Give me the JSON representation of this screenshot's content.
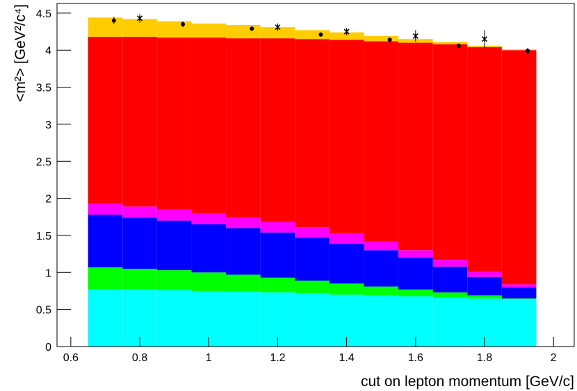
{
  "chart_data": {
    "type": "stacked_histogram",
    "xlabel": "cut on lepton momentum [GeV/c]",
    "ylabel": "<m²> [GeV²/c⁴]",
    "xlim": [
      0.56,
      2.06
    ],
    "ylim": [
      0,
      4.63
    ],
    "xticks": [
      0.6,
      0.8,
      1,
      1.2,
      1.4,
      1.6,
      1.8,
      2
    ],
    "yticks": [
      0,
      0.5,
      1,
      1.5,
      2,
      2.5,
      3,
      3.5,
      4,
      4.5
    ],
    "bins": [
      0.65,
      0.75,
      0.85,
      0.95,
      1.05,
      1.15,
      1.25,
      1.35,
      1.45,
      1.55,
      1.65,
      1.75,
      1.85,
      1.95
    ],
    "series": [
      {
        "color": "#00ffff",
        "values": [
          0.77,
          0.77,
          0.76,
          0.75,
          0.74,
          0.73,
          0.72,
          0.7,
          0.69,
          0.68,
          0.66,
          0.65,
          0.64
        ]
      },
      {
        "color": "#00ff00",
        "values": [
          0.3,
          0.28,
          0.27,
          0.25,
          0.23,
          0.2,
          0.17,
          0.15,
          0.12,
          0.09,
          0.07,
          0.04,
          0.01
        ]
      },
      {
        "color": "#0000ff",
        "values": [
          0.71,
          0.69,
          0.67,
          0.65,
          0.63,
          0.61,
          0.58,
          0.54,
          0.49,
          0.43,
          0.35,
          0.25,
          0.15
        ]
      },
      {
        "color": "#ff00ff",
        "values": [
          0.15,
          0.15,
          0.15,
          0.15,
          0.14,
          0.14,
          0.14,
          0.14,
          0.12,
          0.1,
          0.09,
          0.07,
          0.04
        ]
      },
      {
        "color": "#ff0000",
        "values": [
          2.25,
          2.29,
          2.32,
          2.37,
          2.42,
          2.48,
          2.54,
          2.61,
          2.7,
          2.8,
          2.91,
          3.03,
          3.16
        ]
      },
      {
        "color": "#ffcc00",
        "values": [
          0.26,
          0.24,
          0.22,
          0.19,
          0.18,
          0.15,
          0.12,
          0.1,
          0.07,
          0.05,
          0.03,
          0.02,
          0.01
        ]
      }
    ],
    "points": [
      {
        "marker": "circle",
        "color": "#000000",
        "x": [
          0.725,
          0.925,
          1.125,
          1.325,
          1.525,
          1.725,
          1.925
        ],
        "values": [
          4.4,
          4.35,
          4.29,
          4.21,
          4.14,
          4.06,
          3.99
        ],
        "errors": [
          0.05,
          0.04,
          0.03,
          0.03,
          0.03,
          0.03,
          0.04
        ]
      },
      {
        "marker": "star",
        "color": "#000000",
        "x": [
          0.8,
          1.2,
          1.4,
          1.6,
          1.8
        ],
        "values": [
          4.43,
          4.31,
          4.25,
          4.19,
          4.15
        ],
        "errors": [
          0.06,
          0.05,
          0.05,
          0.08,
          0.12
        ]
      }
    ]
  }
}
